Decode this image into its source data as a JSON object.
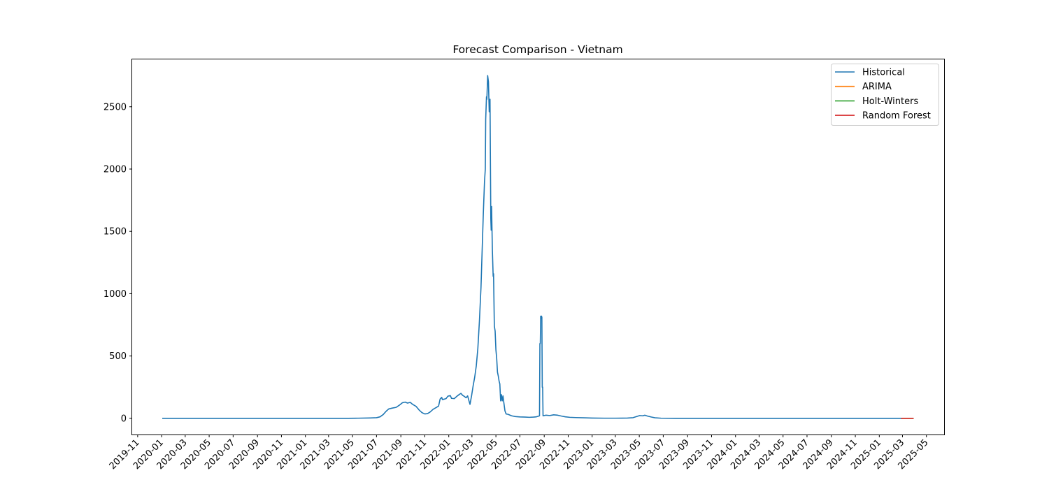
{
  "chart_data": {
    "type": "line",
    "title": "Forecast Comparison - Vietnam",
    "xlabel": "",
    "ylabel": "",
    "xlim": [
      "2019-10-18",
      "2025-06-15"
    ],
    "ylim": [
      -130,
      2880
    ],
    "x_ticks": [
      "2019-11",
      "2020-01",
      "2020-03",
      "2020-05",
      "2020-07",
      "2020-09",
      "2020-11",
      "2021-01",
      "2021-03",
      "2021-05",
      "2021-07",
      "2021-09",
      "2021-11",
      "2022-01",
      "2022-03",
      "2022-05",
      "2022-07",
      "2022-09",
      "2022-11",
      "2023-01",
      "2023-03",
      "2023-05",
      "2023-07",
      "2023-09",
      "2023-11",
      "2024-01",
      "2024-03",
      "2024-05",
      "2024-07",
      "2024-09",
      "2024-11",
      "2025-01",
      "2025-03",
      "2025-05"
    ],
    "y_ticks": [
      0,
      500,
      1000,
      1500,
      2000,
      2500
    ],
    "grid": false,
    "legend_position": "top-right",
    "series": [
      {
        "name": "Historical",
        "color": "#1f77b4",
        "points": [
          [
            "2020-01-04",
            0
          ],
          [
            "2020-06-01",
            0
          ],
          [
            "2021-01-01",
            0
          ],
          [
            "2021-04-20",
            0
          ],
          [
            "2021-05-15",
            1
          ],
          [
            "2021-06-15",
            3
          ],
          [
            "2021-07-01",
            5
          ],
          [
            "2021-07-10",
            12
          ],
          [
            "2021-07-18",
            30
          ],
          [
            "2021-07-25",
            55
          ],
          [
            "2021-08-01",
            75
          ],
          [
            "2021-08-10",
            82
          ],
          [
            "2021-08-20",
            88
          ],
          [
            "2021-08-28",
            105
          ],
          [
            "2021-09-05",
            125
          ],
          [
            "2021-09-12",
            130
          ],
          [
            "2021-09-18",
            122
          ],
          [
            "2021-09-25",
            128
          ],
          [
            "2021-10-01",
            112
          ],
          [
            "2021-10-10",
            95
          ],
          [
            "2021-10-18",
            65
          ],
          [
            "2021-10-25",
            45
          ],
          [
            "2021-11-01",
            35
          ],
          [
            "2021-11-08",
            38
          ],
          [
            "2021-11-15",
            52
          ],
          [
            "2021-11-22",
            72
          ],
          [
            "2021-11-29",
            85
          ],
          [
            "2021-12-06",
            98
          ],
          [
            "2021-12-10",
            155
          ],
          [
            "2021-12-14",
            168
          ],
          [
            "2021-12-16",
            150
          ],
          [
            "2021-12-25",
            158
          ],
          [
            "2021-12-30",
            178
          ],
          [
            "2022-01-05",
            182
          ],
          [
            "2022-01-08",
            160
          ],
          [
            "2022-01-15",
            158
          ],
          [
            "2022-01-22",
            178
          ],
          [
            "2022-01-28",
            192
          ],
          [
            "2022-02-01",
            200
          ],
          [
            "2022-02-05",
            185
          ],
          [
            "2022-02-10",
            175
          ],
          [
            "2022-02-14",
            165
          ],
          [
            "2022-02-18",
            180
          ],
          [
            "2022-02-21",
            145
          ],
          [
            "2022-02-24",
            112
          ],
          [
            "2022-02-28",
            180
          ],
          [
            "2022-03-04",
            260
          ],
          [
            "2022-03-08",
            330
          ],
          [
            "2022-03-12",
            420
          ],
          [
            "2022-03-16",
            560
          ],
          [
            "2022-03-20",
            780
          ],
          [
            "2022-03-24",
            1050
          ],
          [
            "2022-03-27",
            1350
          ],
          [
            "2022-03-30",
            1650
          ],
          [
            "2022-04-02",
            1900
          ],
          [
            "2022-04-04",
            2000
          ],
          [
            "2022-04-05",
            2400
          ],
          [
            "2022-04-07",
            2580
          ],
          [
            "2022-04-08",
            2560
          ],
          [
            "2022-04-10",
            2750
          ],
          [
            "2022-04-12",
            2700
          ],
          [
            "2022-04-14",
            2460
          ],
          [
            "2022-04-15",
            2550
          ],
          [
            "2022-04-16",
            2560
          ],
          [
            "2022-04-18",
            1600
          ],
          [
            "2022-04-19",
            1510
          ],
          [
            "2022-04-20",
            1700
          ],
          [
            "2022-04-22",
            1350
          ],
          [
            "2022-04-24",
            1140
          ],
          [
            "2022-04-25",
            1160
          ],
          [
            "2022-04-27",
            740
          ],
          [
            "2022-04-29",
            700
          ],
          [
            "2022-05-01",
            550
          ],
          [
            "2022-05-03",
            480
          ],
          [
            "2022-05-05",
            370
          ],
          [
            "2022-05-07",
            340
          ],
          [
            "2022-05-09",
            300
          ],
          [
            "2022-05-11",
            275
          ],
          [
            "2022-05-13",
            140
          ],
          [
            "2022-05-15",
            190
          ],
          [
            "2022-05-17",
            140
          ],
          [
            "2022-05-19",
            180
          ],
          [
            "2022-05-21",
            130
          ],
          [
            "2022-05-24",
            60
          ],
          [
            "2022-05-27",
            35
          ],
          [
            "2022-06-01",
            32
          ],
          [
            "2022-06-10",
            20
          ],
          [
            "2022-06-20",
            14
          ],
          [
            "2022-07-01",
            11
          ],
          [
            "2022-07-15",
            10
          ],
          [
            "2022-07-25",
            8
          ],
          [
            "2022-08-05",
            10
          ],
          [
            "2022-08-12",
            12
          ],
          [
            "2022-08-18",
            18
          ],
          [
            "2022-08-20",
            20
          ],
          [
            "2022-08-21",
            600
          ],
          [
            "2022-08-22",
            600
          ],
          [
            "2022-08-23",
            820
          ],
          [
            "2022-08-24",
            800
          ],
          [
            "2022-08-25",
            820
          ],
          [
            "2022-08-26",
            810
          ],
          [
            "2022-08-27",
            250
          ],
          [
            "2022-08-28",
            250
          ],
          [
            "2022-08-29",
            20
          ],
          [
            "2022-09-05",
            25
          ],
          [
            "2022-09-15",
            22
          ],
          [
            "2022-09-25",
            28
          ],
          [
            "2022-10-05",
            25
          ],
          [
            "2022-10-15",
            18
          ],
          [
            "2022-10-25",
            12
          ],
          [
            "2022-11-05",
            8
          ],
          [
            "2022-11-20",
            6
          ],
          [
            "2022-12-10",
            4
          ],
          [
            "2023-01-01",
            2
          ],
          [
            "2023-02-01",
            1
          ],
          [
            "2023-03-01",
            1
          ],
          [
            "2023-04-01",
            2
          ],
          [
            "2023-04-15",
            5
          ],
          [
            "2023-04-25",
            15
          ],
          [
            "2023-05-02",
            22
          ],
          [
            "2023-05-10",
            20
          ],
          [
            "2023-05-15",
            25
          ],
          [
            "2023-05-22",
            18
          ],
          [
            "2023-06-01",
            10
          ],
          [
            "2023-06-10",
            4
          ],
          [
            "2023-06-25",
            1
          ],
          [
            "2023-08-01",
            0
          ],
          [
            "2024-01-01",
            0
          ],
          [
            "2024-07-01",
            0
          ],
          [
            "2025-01-01",
            0
          ],
          [
            "2025-02-27",
            0
          ]
        ]
      },
      {
        "name": "ARIMA",
        "color": "#ff7f0e",
        "points": [
          [
            "2025-02-27",
            0
          ],
          [
            "2025-03-28",
            0
          ]
        ]
      },
      {
        "name": "Holt-Winters",
        "color": "#2ca02c",
        "points": [
          [
            "2025-02-27",
            0
          ],
          [
            "2025-03-28",
            0
          ]
        ]
      },
      {
        "name": "Random Forest",
        "color": "#d62728",
        "points": [
          [
            "2025-02-27",
            0
          ],
          [
            "2025-03-28",
            0
          ]
        ]
      }
    ]
  }
}
